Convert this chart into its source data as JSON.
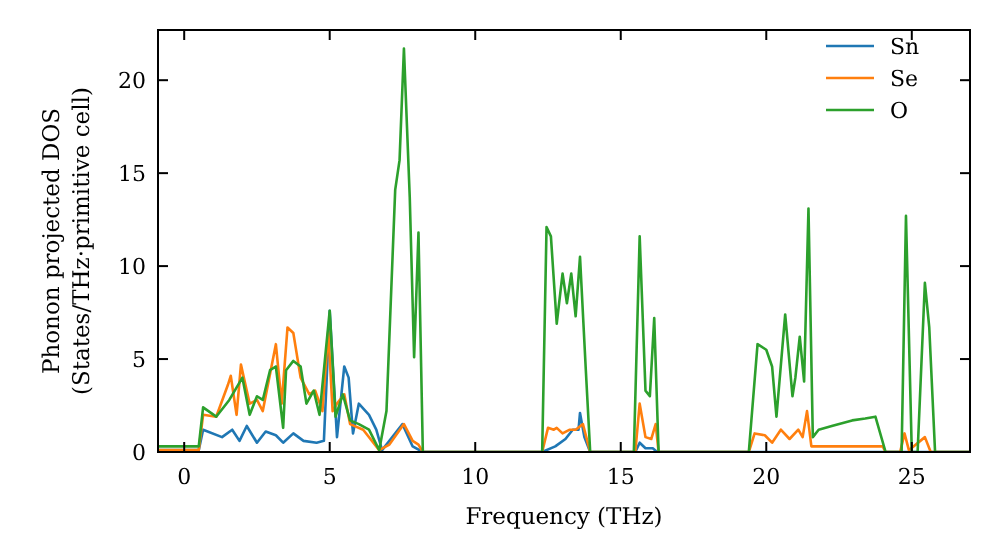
{
  "chart_data": {
    "type": "line",
    "xlabel": "Frequency (THz)",
    "ylabel": "Phonon projected DOS\n(States/THz·primitive cell)",
    "xlim": [
      -0.9,
      27
    ],
    "ylim": [
      0,
      22.7
    ],
    "xticks": [
      0,
      5,
      10,
      15,
      20,
      25
    ],
    "yticks": [
      0,
      5,
      10,
      15,
      20
    ],
    "grid": false,
    "legend": "top right",
    "marker": "none",
    "line_style": "solid",
    "series": [
      {
        "name": "Sn",
        "color": "#1f77b4",
        "x": [
          -0.9,
          0.5,
          0.65,
          1.3,
          1.65,
          1.9,
          2.15,
          2.5,
          2.8,
          3.15,
          3.4,
          3.75,
          4.1,
          4.55,
          4.8,
          5.0,
          5.25,
          5.5,
          5.65,
          5.8,
          6.0,
          6.35,
          6.6,
          6.8,
          7.5,
          7.85,
          8.2,
          12.3,
          12.75,
          13.1,
          13.35,
          13.55,
          13.6,
          13.75,
          13.95,
          15.5,
          15.65,
          15.85,
          16.1,
          16.25,
          27
        ],
        "values": [
          0.1,
          0.1,
          1.2,
          0.8,
          1.2,
          0.6,
          1.4,
          0.5,
          1.1,
          0.9,
          0.5,
          1.0,
          0.6,
          0.5,
          0.6,
          7.6,
          0.8,
          4.6,
          4.0,
          1.0,
          2.6,
          2.0,
          1.2,
          0.1,
          1.5,
          0.3,
          0,
          0,
          0.3,
          0.7,
          1.2,
          1.2,
          2.1,
          0.8,
          0,
          0,
          0.5,
          0.2,
          0.2,
          0,
          0
        ]
      },
      {
        "name": "Se",
        "color": "#ff7f0e",
        "x": [
          -0.9,
          0.5,
          0.65,
          1.1,
          1.5,
          1.6,
          1.8,
          1.95,
          2.25,
          2.5,
          2.7,
          3.15,
          3.35,
          3.55,
          3.75,
          4.0,
          4.3,
          4.5,
          4.75,
          4.95,
          5.1,
          5.25,
          5.5,
          5.7,
          6.15,
          6.7,
          7.05,
          7.55,
          7.85,
          8.05,
          8.2,
          12.3,
          12.5,
          12.7,
          12.8,
          13.0,
          13.25,
          13.45,
          13.7,
          13.95,
          15.5,
          15.65,
          15.85,
          16.05,
          16.2,
          16.3,
          19.4,
          19.6,
          19.95,
          20.2,
          20.5,
          20.8,
          21.1,
          21.25,
          21.4,
          21.55,
          22.0,
          24.0,
          24.1,
          24.6,
          24.75,
          24.9,
          25.45,
          25.65,
          27
        ],
        "values": [
          0.1,
          0.1,
          2.0,
          1.9,
          3.6,
          4.1,
          2.0,
          4.7,
          2.6,
          2.8,
          2.2,
          5.8,
          2.6,
          6.7,
          6.4,
          4.0,
          3.1,
          3.3,
          2.2,
          6.5,
          2.2,
          2.6,
          3.1,
          1.5,
          1.2,
          0.1,
          0.4,
          1.5,
          0.6,
          0.4,
          0,
          0,
          1.3,
          1.2,
          1.3,
          1.0,
          1.2,
          1.2,
          1.5,
          0,
          0,
          2.6,
          0.8,
          0.7,
          1.5,
          0,
          0,
          1.0,
          0.9,
          0.5,
          1.2,
          0.7,
          1.2,
          0.8,
          2.2,
          0.3,
          0.3,
          0.3,
          0,
          0,
          1.0,
          0.1,
          0.8,
          0,
          0
        ]
      },
      {
        "name": "O",
        "color": "#2ca02c",
        "x": [
          -0.9,
          0.5,
          0.65,
          1.1,
          1.55,
          2.0,
          2.25,
          2.5,
          2.7,
          2.95,
          3.15,
          3.4,
          3.5,
          3.75,
          4.0,
          4.2,
          4.45,
          4.65,
          5.0,
          5.2,
          5.45,
          5.7,
          6.0,
          6.35,
          6.7,
          6.95,
          7.25,
          7.4,
          7.55,
          7.75,
          7.9,
          8.05,
          8.2,
          12.3,
          12.45,
          12.6,
          12.8,
          13.0,
          13.15,
          13.3,
          13.45,
          13.6,
          13.8,
          13.95,
          15.45,
          15.65,
          15.85,
          16.0,
          16.15,
          16.3,
          19.4,
          19.7,
          20.0,
          20.2,
          20.35,
          20.65,
          20.9,
          21.0,
          21.15,
          21.3,
          21.45,
          21.6,
          21.8,
          22.25,
          22.95,
          23.4,
          23.75,
          24.1,
          24.65,
          24.8,
          25.0,
          25.2,
          25.45,
          25.6,
          25.8,
          27
        ],
        "values": [
          0.3,
          0.3,
          2.4,
          1.9,
          2.8,
          4.0,
          2.0,
          3.0,
          2.8,
          4.4,
          4.6,
          1.3,
          4.4,
          4.9,
          4.6,
          2.6,
          3.3,
          2.0,
          7.6,
          1.9,
          3.1,
          1.7,
          1.5,
          1.2,
          0.1,
          2.2,
          14.1,
          15.7,
          21.7,
          13.7,
          5.1,
          11.8,
          0,
          0,
          12.1,
          11.6,
          6.9,
          9.6,
          8.0,
          9.6,
          7.3,
          10.5,
          4.4,
          0,
          0,
          11.6,
          3.3,
          3.0,
          7.2,
          0,
          0,
          5.8,
          5.5,
          4.6,
          1.9,
          7.4,
          3.0,
          4.0,
          6.2,
          3.8,
          13.1,
          0.8,
          1.2,
          1.4,
          1.7,
          1.8,
          1.9,
          0,
          0,
          12.7,
          0,
          0,
          9.1,
          6.7,
          0,
          0
        ]
      }
    ]
  }
}
